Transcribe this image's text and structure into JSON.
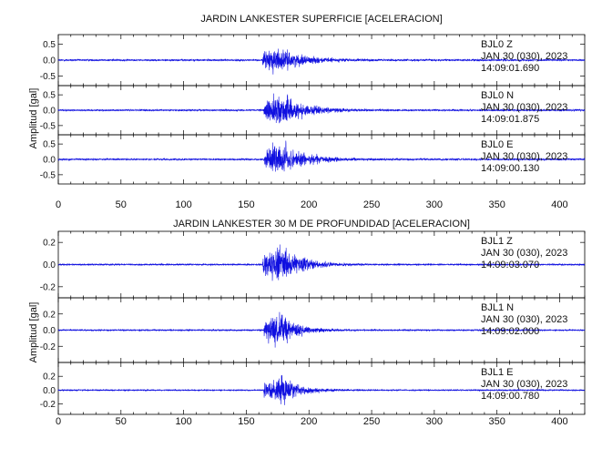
{
  "chart_data": [
    {
      "type": "line",
      "title": "JARDIN LANKESTER SUPERFICIE [ACELERACION]",
      "ylabel": "Amplitud [gal]",
      "xlim": [
        0,
        420
      ],
      "x_ticks": [
        0,
        50,
        100,
        150,
        200,
        250,
        300,
        350,
        400
      ],
      "line_color": "#1010e0",
      "traces": [
        {
          "station": "BJL0",
          "component": "Z",
          "label": "BJL0   Z",
          "date": "JAN 30 (030), 2023",
          "time": "14:09:01.690",
          "ylim": [
            -0.8,
            0.8
          ],
          "y_ticks": [
            0.5,
            0.0,
            -0.5
          ],
          "noise_amplitude": 0.04,
          "peak_amplitude": 0.58,
          "onset_s": 163,
          "peak_s": 172,
          "decay_s": 20
        },
        {
          "station": "BJL0",
          "component": "N",
          "label": "BJL0   N",
          "date": "JAN 30 (030), 2023",
          "time": "14:09:01.875",
          "ylim": [
            -0.8,
            0.8
          ],
          "y_ticks": [
            0.5,
            0.0,
            -0.5
          ],
          "noise_amplitude": 0.04,
          "peak_amplitude": 0.75,
          "onset_s": 164,
          "peak_s": 178,
          "decay_s": 18
        },
        {
          "station": "BJL0",
          "component": "E",
          "label": "BJL0   E",
          "date": "JAN 30 (030), 2023",
          "time": "14:09:00.130",
          "ylim": [
            -0.8,
            0.8
          ],
          "y_ticks": [
            0.5,
            0.0,
            -0.5
          ],
          "noise_amplitude": 0.04,
          "peak_amplitude": 0.78,
          "onset_s": 164,
          "peak_s": 178,
          "decay_s": 18
        }
      ]
    },
    {
      "type": "line",
      "title": "JARDIN LANKESTER 30 M DE PROFUNDIDAD [ACELERACION]",
      "ylabel": "Amplitud [gal]",
      "xlim": [
        0,
        420
      ],
      "x_ticks": [
        0,
        50,
        100,
        150,
        200,
        250,
        300,
        350,
        400
      ],
      "line_color": "#1010e0",
      "traces": [
        {
          "station": "BJL1",
          "component": "Z",
          "label": "BJL1   Z",
          "date": "JAN 30 (030), 2023",
          "time": "14:09:03.070",
          "ylim": [
            -0.3,
            0.3
          ],
          "y_ticks": [
            0.2,
            0.0,
            -0.2
          ],
          "noise_amplitude": 0.01,
          "peak_amplitude": 0.27,
          "onset_s": 163,
          "peak_s": 175,
          "decay_s": 16
        },
        {
          "station": "BJL1",
          "component": "N",
          "label": "BJL1   N",
          "date": "JAN 30 (030), 2023",
          "time": "14:09:02.000",
          "ylim": [
            -0.4,
            0.4
          ],
          "y_ticks": [
            0.2,
            0.0,
            -0.2
          ],
          "noise_amplitude": 0.012,
          "peak_amplitude": 0.3,
          "onset_s": 164,
          "peak_s": 176,
          "decay_s": 14
        },
        {
          "station": "BJL1",
          "component": "E",
          "label": "BJL1   E",
          "date": "JAN 30 (030), 2023",
          "time": "14:09:00.780",
          "ylim": [
            -0.35,
            0.4
          ],
          "y_ticks": [
            0.2,
            0.0,
            -0.2
          ],
          "noise_amplitude": 0.012,
          "peak_amplitude": 0.28,
          "onset_s": 164,
          "peak_s": 180,
          "decay_s": 14
        }
      ]
    }
  ]
}
